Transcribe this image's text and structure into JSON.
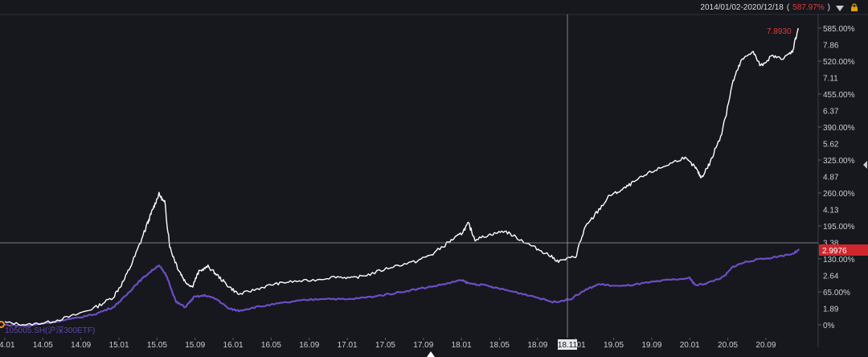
{
  "header": {
    "date_range": "2014/01/02-2020/12/18",
    "return_pct": "587.97%",
    "open_paren": "(",
    "close_paren": ")"
  },
  "legend_series": "105005.SH(沪深300ETF)",
  "colors": {
    "background": "#16181d",
    "main_line": "#ffffff",
    "compare_line": "#6d4dc4",
    "up_red": "#e23b3b",
    "crosshair": "#9aa0a8",
    "axis_text": "#c9cdd4"
  },
  "crosshair": {
    "date_label": "18.11",
    "y_label": "2.9976"
  },
  "chart_data": {
    "type": "line",
    "x_tick_labels": [
      "14.01",
      "14.05",
      "14.09",
      "15.01",
      "15.05",
      "15.09",
      "16.01",
      "16.05",
      "16.09",
      "17.01",
      "17.05",
      "17.09",
      "18.01",
      "18.05",
      "18.09",
      "19.01",
      "19.05",
      "19.09",
      "20.01",
      "20.05",
      "20.09"
    ],
    "y_ticks": [
      {
        "pct": "585.00%",
        "price": "7.86"
      },
      {
        "pct": "520.00%",
        "price": "7.11"
      },
      {
        "pct": "455.00%",
        "price": "6.37"
      },
      {
        "pct": "390.00%",
        "price": "5.62"
      },
      {
        "pct": "325.00%",
        "price": "4.87"
      },
      {
        "pct": "260.00%",
        "price": "4.13"
      },
      {
        "pct": "195.00%",
        "price": "3.38"
      },
      {
        "pct": "130.00%",
        "price": "2.64"
      },
      {
        "pct": "65.00%",
        "price": "1.89"
      },
      {
        "pct": "0%",
        "price": ""
      }
    ],
    "y_range_pct": [
      0,
      610
    ],
    "x_range": [
      2014.0,
      2021.0
    ],
    "last_value_label": "7.8930",
    "series": [
      {
        "color": "#ffffff",
        "points": [
          [
            2014.0,
            5
          ],
          [
            2014.2,
            0
          ],
          [
            2014.4,
            6
          ],
          [
            2014.6,
            18
          ],
          [
            2014.8,
            35
          ],
          [
            2014.95,
            55
          ],
          [
            2015.05,
            90
          ],
          [
            2015.15,
            140
          ],
          [
            2015.25,
            200
          ],
          [
            2015.3,
            230
          ],
          [
            2015.35,
            258
          ],
          [
            2015.4,
            240
          ],
          [
            2015.45,
            150
          ],
          [
            2015.52,
            110
          ],
          [
            2015.58,
            85
          ],
          [
            2015.64,
            75
          ],
          [
            2015.7,
            105
          ],
          [
            2015.78,
            115
          ],
          [
            2015.86,
            98
          ],
          [
            2015.95,
            78
          ],
          [
            2016.05,
            60
          ],
          [
            2016.2,
            70
          ],
          [
            2016.35,
            80
          ],
          [
            2016.5,
            85
          ],
          [
            2016.7,
            88
          ],
          [
            2016.9,
            95
          ],
          [
            2017.05,
            92
          ],
          [
            2017.2,
            100
          ],
          [
            2017.4,
            115
          ],
          [
            2017.6,
            125
          ],
          [
            2017.75,
            140
          ],
          [
            2017.9,
            165
          ],
          [
            2018.0,
            180
          ],
          [
            2018.06,
            200
          ],
          [
            2018.12,
            168
          ],
          [
            2018.25,
            178
          ],
          [
            2018.38,
            185
          ],
          [
            2018.5,
            170
          ],
          [
            2018.62,
            155
          ],
          [
            2018.75,
            140
          ],
          [
            2018.85,
            125
          ],
          [
            2019.0,
            135
          ],
          [
            2019.08,
            190
          ],
          [
            2019.18,
            220
          ],
          [
            2019.3,
            255
          ],
          [
            2019.4,
            265
          ],
          [
            2019.5,
            280
          ],
          [
            2019.65,
            300
          ],
          [
            2019.8,
            315
          ],
          [
            2019.95,
            330
          ],
          [
            2020.05,
            310
          ],
          [
            2020.1,
            290
          ],
          [
            2020.18,
            320
          ],
          [
            2020.28,
            380
          ],
          [
            2020.38,
            480
          ],
          [
            2020.45,
            520
          ],
          [
            2020.55,
            540
          ],
          [
            2020.62,
            510
          ],
          [
            2020.72,
            530
          ],
          [
            2020.82,
            525
          ],
          [
            2020.9,
            540
          ],
          [
            2020.95,
            585
          ]
        ]
      },
      {
        "name": "105005.SH(沪深300ETF)",
        "color": "#6d4dc4",
        "points": [
          [
            2014.0,
            0
          ],
          [
            2014.2,
            -2
          ],
          [
            2014.4,
            5
          ],
          [
            2014.6,
            12
          ],
          [
            2014.8,
            22
          ],
          [
            2014.95,
            35
          ],
          [
            2015.05,
            55
          ],
          [
            2015.15,
            80
          ],
          [
            2015.25,
            100
          ],
          [
            2015.35,
            118
          ],
          [
            2015.42,
            95
          ],
          [
            2015.5,
            45
          ],
          [
            2015.58,
            35
          ],
          [
            2015.66,
            55
          ],
          [
            2015.76,
            58
          ],
          [
            2015.86,
            50
          ],
          [
            2015.96,
            32
          ],
          [
            2016.05,
            28
          ],
          [
            2016.2,
            35
          ],
          [
            2016.4,
            42
          ],
          [
            2016.6,
            48
          ],
          [
            2016.8,
            52
          ],
          [
            2017.0,
            50
          ],
          [
            2017.2,
            55
          ],
          [
            2017.4,
            62
          ],
          [
            2017.6,
            70
          ],
          [
            2017.8,
            78
          ],
          [
            2018.0,
            88
          ],
          [
            2018.06,
            82
          ],
          [
            2018.2,
            78
          ],
          [
            2018.4,
            68
          ],
          [
            2018.6,
            58
          ],
          [
            2018.8,
            45
          ],
          [
            2018.95,
            50
          ],
          [
            2019.08,
            68
          ],
          [
            2019.2,
            80
          ],
          [
            2019.4,
            76
          ],
          [
            2019.6,
            82
          ],
          [
            2019.8,
            88
          ],
          [
            2020.0,
            92
          ],
          [
            2020.05,
            78
          ],
          [
            2020.15,
            82
          ],
          [
            2020.3,
            95
          ],
          [
            2020.38,
            115
          ],
          [
            2020.5,
            125
          ],
          [
            2020.7,
            132
          ],
          [
            2020.9,
            140
          ],
          [
            2020.96,
            148
          ]
        ]
      }
    ]
  }
}
